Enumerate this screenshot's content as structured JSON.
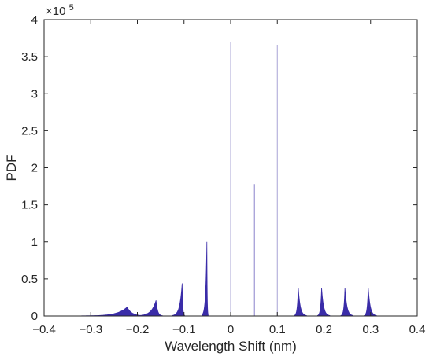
{
  "chart_data": {
    "type": "area",
    "title": "",
    "xlabel": "Wavelength Shift (nm)",
    "ylabel": "PDF",
    "xlim": [
      -0.4,
      0.4
    ],
    "ylim": [
      0,
      400000
    ],
    "x_ticks": [
      -0.4,
      -0.3,
      -0.2,
      -0.1,
      0,
      0.1,
      0.2,
      0.3,
      0.4
    ],
    "x_tick_labels": [
      "−0.4",
      "−0.3",
      "−0.2",
      "−0.1",
      "0",
      "0.1",
      "0.2",
      "0.3",
      "0.4"
    ],
    "y_ticks": [
      0,
      50000,
      100000,
      150000,
      200000,
      250000,
      300000,
      350000,
      400000
    ],
    "y_tick_labels": [
      "0",
      "0.5",
      "1",
      "1.5",
      "2",
      "2.5",
      "3",
      "3.5",
      "4"
    ],
    "y_exponent_label": "×10",
    "y_exponent_power": "5",
    "grid": false,
    "series": [
      {
        "color": "#3a2ca8",
        "peaks": [
          {
            "center": -0.222,
            "height": 12000,
            "width_left": 0.025,
            "width_right": 0.012,
            "shape": "broad"
          },
          {
            "center": -0.16,
            "height": 21000,
            "width_left": 0.012,
            "width_right": 0.004,
            "shape": "medium"
          },
          {
            "center": -0.104,
            "height": 44000,
            "width_left": 0.006,
            "width_right": 0.0015,
            "shape": "sharp"
          },
          {
            "center": -0.051,
            "height": 100000,
            "width_left": 0.003,
            "width_right": 0.0008,
            "shape": "sharp"
          },
          {
            "center": 0.0,
            "height": 370000,
            "width_left": 0.0006,
            "width_right": 0.0006,
            "shape": "spike"
          },
          {
            "center": 0.05,
            "height": 178000,
            "width_left": 0.0012,
            "width_right": 0.0012,
            "shape": "spike"
          },
          {
            "center": 0.1,
            "height": 366000,
            "width_left": 0.0006,
            "width_right": 0.0006,
            "shape": "spike"
          },
          {
            "center": 0.145,
            "height": 38000,
            "width_left": 0.0025,
            "width_right": 0.005,
            "shape": "medium"
          },
          {
            "center": 0.195,
            "height": 38000,
            "width_left": 0.0025,
            "width_right": 0.005,
            "shape": "medium"
          },
          {
            "center": 0.245,
            "height": 38000,
            "width_left": 0.0025,
            "width_right": 0.005,
            "shape": "medium"
          },
          {
            "center": 0.295,
            "height": 38000,
            "width_left": 0.0025,
            "width_right": 0.005,
            "shape": "medium"
          }
        ]
      }
    ]
  }
}
